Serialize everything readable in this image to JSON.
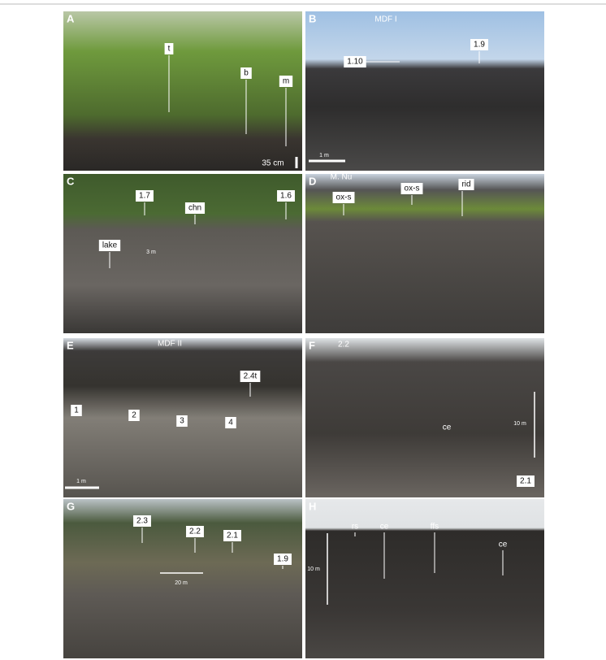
{
  "panels": [
    {
      "letter": "A",
      "labels": [
        "t",
        "b",
        "m",
        "35 cm"
      ]
    },
    {
      "letter": "B",
      "labels": [
        "MDF I",
        "1.10",
        "1.9",
        "1 m"
      ]
    },
    {
      "letter": "C",
      "labels": [
        "1.7",
        "chn",
        "1.6",
        "lake",
        "3 m"
      ]
    },
    {
      "letter": "D",
      "labels": [
        "M. Nu",
        "ox-s",
        "ox-s",
        "rid"
      ]
    },
    {
      "letter": "E",
      "labels": [
        "MDF II",
        "2.4t",
        "1",
        "2",
        "3",
        "4",
        "1 m"
      ]
    },
    {
      "letter": "F",
      "labels": [
        "2.2",
        "ce",
        "10 m",
        "2.1"
      ]
    },
    {
      "letter": "G",
      "labels": [
        "2.3",
        "2.2",
        "2.1",
        "1.9",
        "20 m"
      ]
    },
    {
      "letter": "H",
      "labels": [
        "rs",
        "ce",
        "ffs",
        "ce",
        "10 m"
      ]
    }
  ]
}
